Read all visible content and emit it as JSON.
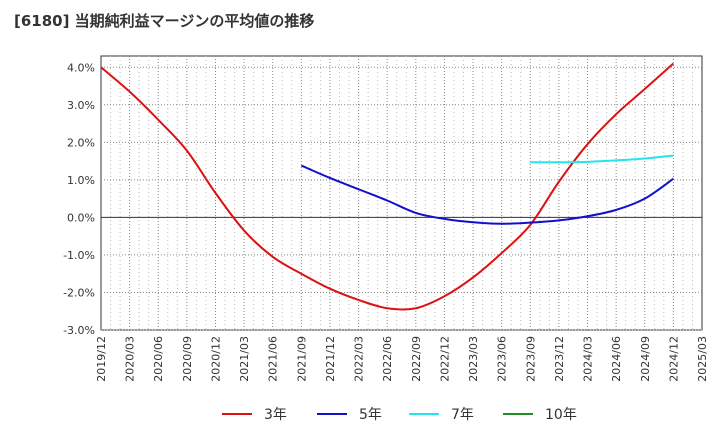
{
  "chart_data": {
    "type": "line",
    "title": "[6180]  当期純利益マージンの平均値の推移",
    "xlabel": "",
    "ylabel": "",
    "x_ticks": [
      "2019/12",
      "2020/03",
      "2020/06",
      "2020/09",
      "2020/12",
      "2021/03",
      "2021/06",
      "2021/09",
      "2021/12",
      "2022/03",
      "2022/06",
      "2022/09",
      "2022/12",
      "2023/03",
      "2023/06",
      "2023/09",
      "2023/12",
      "2024/03",
      "2024/06",
      "2024/09",
      "2024/12",
      "2025/03"
    ],
    "y_ticks": [
      4.0,
      3.0,
      2.0,
      1.0,
      0.0,
      -1.0,
      -2.0,
      -3.0
    ],
    "y_tick_labels": [
      "4.0%",
      "3.0%",
      "2.0%",
      "1.0%",
      "0.0%",
      "-1.0%",
      "-2.0%",
      "-3.0%"
    ],
    "ylim": [
      -3.0,
      4.3
    ],
    "grid": true,
    "legend_position": "bottom",
    "series": [
      {
        "name": "3年",
        "color": "#dd1111",
        "points": [
          [
            "2019/12",
            4.0
          ],
          [
            "2020/03",
            3.35
          ],
          [
            "2020/06",
            2.6
          ],
          [
            "2020/09",
            1.78
          ],
          [
            "2020/12",
            0.65
          ],
          [
            "2021/03",
            -0.35
          ],
          [
            "2021/06",
            -1.05
          ],
          [
            "2021/09",
            -1.5
          ],
          [
            "2021/12",
            -1.9
          ],
          [
            "2022/03",
            -2.2
          ],
          [
            "2022/06",
            -2.42
          ],
          [
            "2022/09",
            -2.42
          ],
          [
            "2022/12",
            -2.1
          ],
          [
            "2023/03",
            -1.6
          ],
          [
            "2023/06",
            -0.95
          ],
          [
            "2023/09",
            -0.2
          ],
          [
            "2023/12",
            0.95
          ],
          [
            "2024/03",
            1.95
          ],
          [
            "2024/06",
            2.75
          ],
          [
            "2024/09",
            3.42
          ],
          [
            "2024/12",
            4.1
          ]
        ]
      },
      {
        "name": "5年",
        "color": "#1111cc",
        "points": [
          [
            "2021/09",
            1.38
          ],
          [
            "2021/12",
            1.05
          ],
          [
            "2022/03",
            0.75
          ],
          [
            "2022/06",
            0.45
          ],
          [
            "2022/09",
            0.12
          ],
          [
            "2022/12",
            -0.04
          ],
          [
            "2023/03",
            -0.13
          ],
          [
            "2023/06",
            -0.17
          ],
          [
            "2023/09",
            -0.14
          ],
          [
            "2023/12",
            -0.08
          ],
          [
            "2024/03",
            0.03
          ],
          [
            "2024/06",
            0.2
          ],
          [
            "2024/09",
            0.5
          ],
          [
            "2024/12",
            1.03
          ]
        ]
      },
      {
        "name": "7年",
        "color": "#22e5ee",
        "points": [
          [
            "2023/09",
            1.47
          ],
          [
            "2023/12",
            1.47
          ],
          [
            "2024/03",
            1.48
          ],
          [
            "2024/06",
            1.52
          ],
          [
            "2024/09",
            1.57
          ],
          [
            "2024/12",
            1.65
          ]
        ]
      },
      {
        "name": "10年",
        "color": "#228b22",
        "points": []
      }
    ]
  }
}
